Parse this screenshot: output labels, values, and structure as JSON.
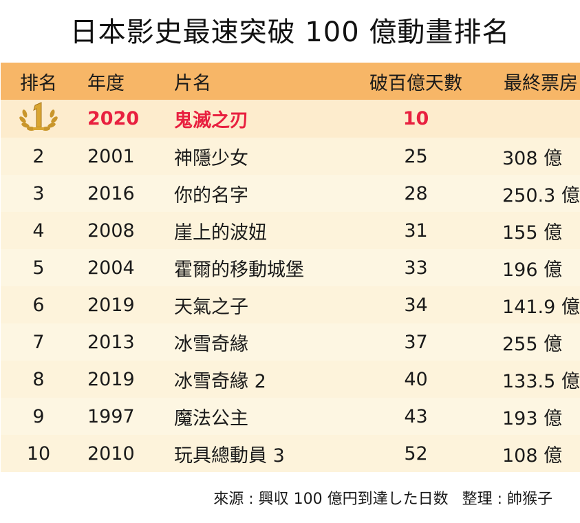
{
  "title": "日本影史最速突破 100 億動畫排名",
  "headers": [
    "排名",
    "年度",
    "片名",
    "破百億天數",
    "最終票房"
  ],
  "rows": [
    {
      "rank": "",
      "year": "2020",
      "film": "鬼滅之刃",
      "days": "10",
      "box": ""
    },
    {
      "rank": "2",
      "year": "2001",
      "film": "神隱少女",
      "days": "25",
      "box": "308 億"
    },
    {
      "rank": "3",
      "year": "2016",
      "film": "你的名字",
      "days": "28",
      "box": "250.3 億"
    },
    {
      "rank": "4",
      "year": "2008",
      "film": "崖上的波妞",
      "days": "31",
      "box": "155 億"
    },
    {
      "rank": "5",
      "year": "2004",
      "film": "霍爾的移動城堡",
      "days": "33",
      "box": "196 億"
    },
    {
      "rank": "6",
      "year": "2019",
      "film": "天氣之子",
      "days": "34",
      "box": "141.9 億"
    },
    {
      "rank": "7",
      "year": "2013",
      "film": "冰雪奇緣",
      "days": "37",
      "box": "255 億"
    },
    {
      "rank": "8",
      "year": "2019",
      "film": "冰雪奇緣 2",
      "days": "40",
      "box": "133.5 億"
    },
    {
      "rank": "9",
      "year": "1997",
      "film": "魔法公主",
      "days": "43",
      "box": "193 億"
    },
    {
      "rank": "10",
      "year": "2010",
      "film": "玩具總動員 3",
      "days": "52",
      "box": "108 億"
    }
  ],
  "source": "來源 : 興収 100 億円到達した日数",
  "credit": "整理 : 帥猴子",
  "colors": {
    "header_bg": "#f7b667",
    "row_bg": "#fdf6e2",
    "highlight": "#e8203f",
    "medal_gold": "#c9962b"
  },
  "first_rank_icon": "gold-medal-number-one-icon"
}
